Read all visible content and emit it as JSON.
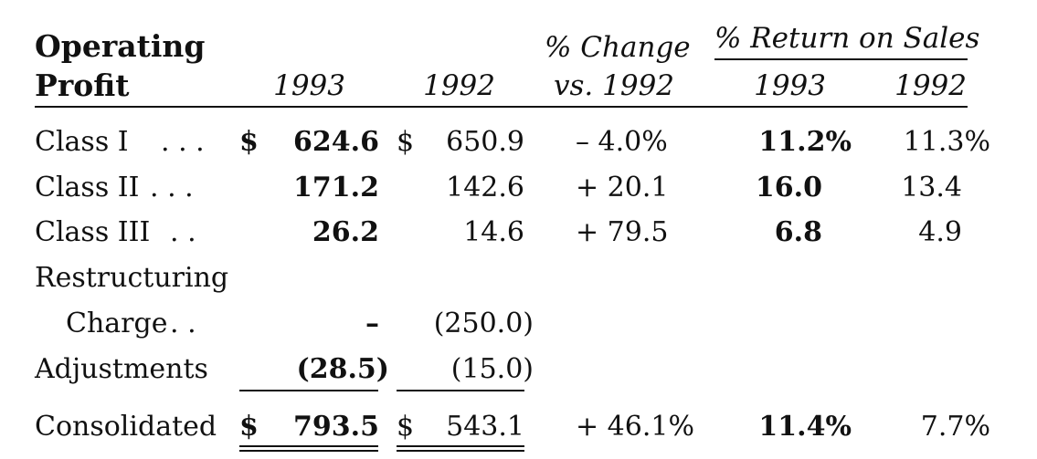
{
  "header": {
    "title_line1": "Operating",
    "title_line2": "Profit",
    "col_1993": "1993",
    "col_1992": "1992",
    "pct_change_line1": "% Change",
    "pct_change_line2": "vs. 1992",
    "return_on_sales": "% Return on Sales",
    "ros_1993": "1993",
    "ros_1992": "1992"
  },
  "rows": [
    {
      "label": "Class I",
      "leader": ". . .",
      "cur1993": "$",
      "val1993": "624.6",
      "cur1992": "$",
      "val1992": "650.9",
      "change": "– 4.0%",
      "ros1993": "11.2%",
      "ros1992": "11.3%"
    },
    {
      "label": "Class II",
      "leader": ". . .",
      "val1993": "171.2",
      "val1992": "142.6",
      "change": "+ 20.1",
      "ros1993": "16.0",
      "ros1992": "13.4"
    },
    {
      "label": "Class III",
      "leader": ". .",
      "val1993": "26.2",
      "val1992": "14.6",
      "change": "+ 79.5",
      "ros1993": "6.8",
      "ros1992": "4.9"
    },
    {
      "label": "Restructuring"
    },
    {
      "label": "Charge",
      "leader": ". .",
      "val1993": "–",
      "val1992": "(250.0)"
    },
    {
      "label": "Adjustments",
      "val1993": "(28.5)",
      "val1992": "(15.0)"
    },
    {
      "label": "Consolidated",
      "cur1993": "$",
      "val1993": "793.5",
      "cur1992": "$",
      "val1992": "543.1",
      "change": "+ 46.1%",
      "ros1993": "11.4%",
      "ros1992": "7.7%"
    }
  ]
}
